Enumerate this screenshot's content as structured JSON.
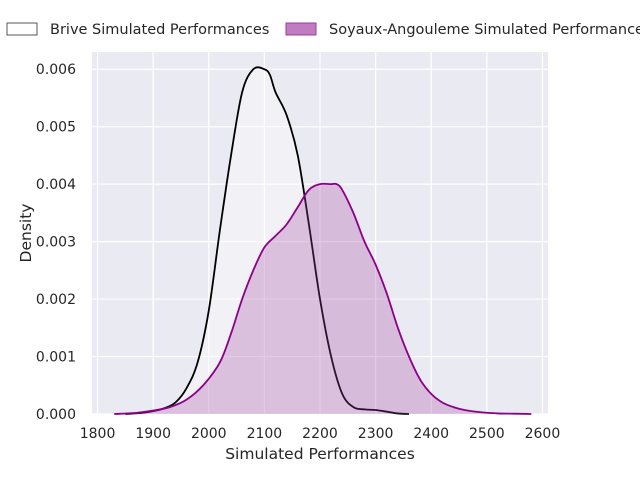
{
  "chart_data": {
    "type": "area",
    "title": "",
    "xlabel": "Simulated Performances",
    "ylabel": "Density",
    "xlim": [
      1790,
      2610
    ],
    "ylim": [
      0,
      0.0063
    ],
    "xticks": [
      1800,
      1900,
      2000,
      2100,
      2200,
      2300,
      2400,
      2500,
      2600
    ],
    "yticks": [
      "0.000",
      "0.001",
      "0.002",
      "0.003",
      "0.004",
      "0.005",
      "0.006"
    ],
    "grid": true,
    "legend_placement": "top, above plot",
    "series": [
      {
        "name": "Brive Simulated Performances",
        "line_color": "#000000",
        "fill_color": "#ffffff",
        "fill_opacity": 0.35,
        "x": [
          1850,
          1880,
          1900,
          1920,
          1940,
          1960,
          1980,
          2000,
          2020,
          2040,
          2060,
          2080,
          2100,
          2110,
          2120,
          2140,
          2160,
          2180,
          2200,
          2220,
          2240,
          2260,
          2280,
          2300,
          2320,
          2340,
          2360
        ],
        "y": [
          0.0,
          2e-05,
          5e-05,
          0.0001,
          0.0002,
          0.00045,
          0.0009,
          0.0018,
          0.0032,
          0.0045,
          0.0056,
          0.006,
          0.006,
          0.0059,
          0.0056,
          0.0052,
          0.0045,
          0.0033,
          0.002,
          0.001,
          0.00035,
          0.00012,
          8e-05,
          7e-05,
          4e-05,
          1e-05,
          0.0
        ]
      },
      {
        "name": "Soyaux-Angouleme Simulated Performances",
        "line_color": "#8b008b",
        "fill_color": "#a040a0",
        "fill_opacity": 0.28,
        "x": [
          1830,
          1870,
          1900,
          1930,
          1960,
          1990,
          2020,
          2040,
          2060,
          2080,
          2100,
          2120,
          2140,
          2160,
          2180,
          2200,
          2220,
          2230,
          2240,
          2260,
          2280,
          2300,
          2320,
          2340,
          2360,
          2380,
          2400,
          2420,
          2440,
          2460,
          2490,
          2520,
          2550,
          2580
        ],
        "y": [
          0.0,
          2e-05,
          6e-05,
          0.00012,
          0.00025,
          0.0005,
          0.0009,
          0.0014,
          0.002,
          0.0025,
          0.0029,
          0.0031,
          0.0033,
          0.0036,
          0.0039,
          0.004,
          0.004,
          0.004,
          0.0039,
          0.0035,
          0.003,
          0.0026,
          0.0021,
          0.0015,
          0.001,
          0.0006,
          0.00035,
          0.0002,
          0.00012,
          7e-05,
          3e-05,
          1e-05,
          5e-06,
          0.0
        ]
      }
    ]
  }
}
